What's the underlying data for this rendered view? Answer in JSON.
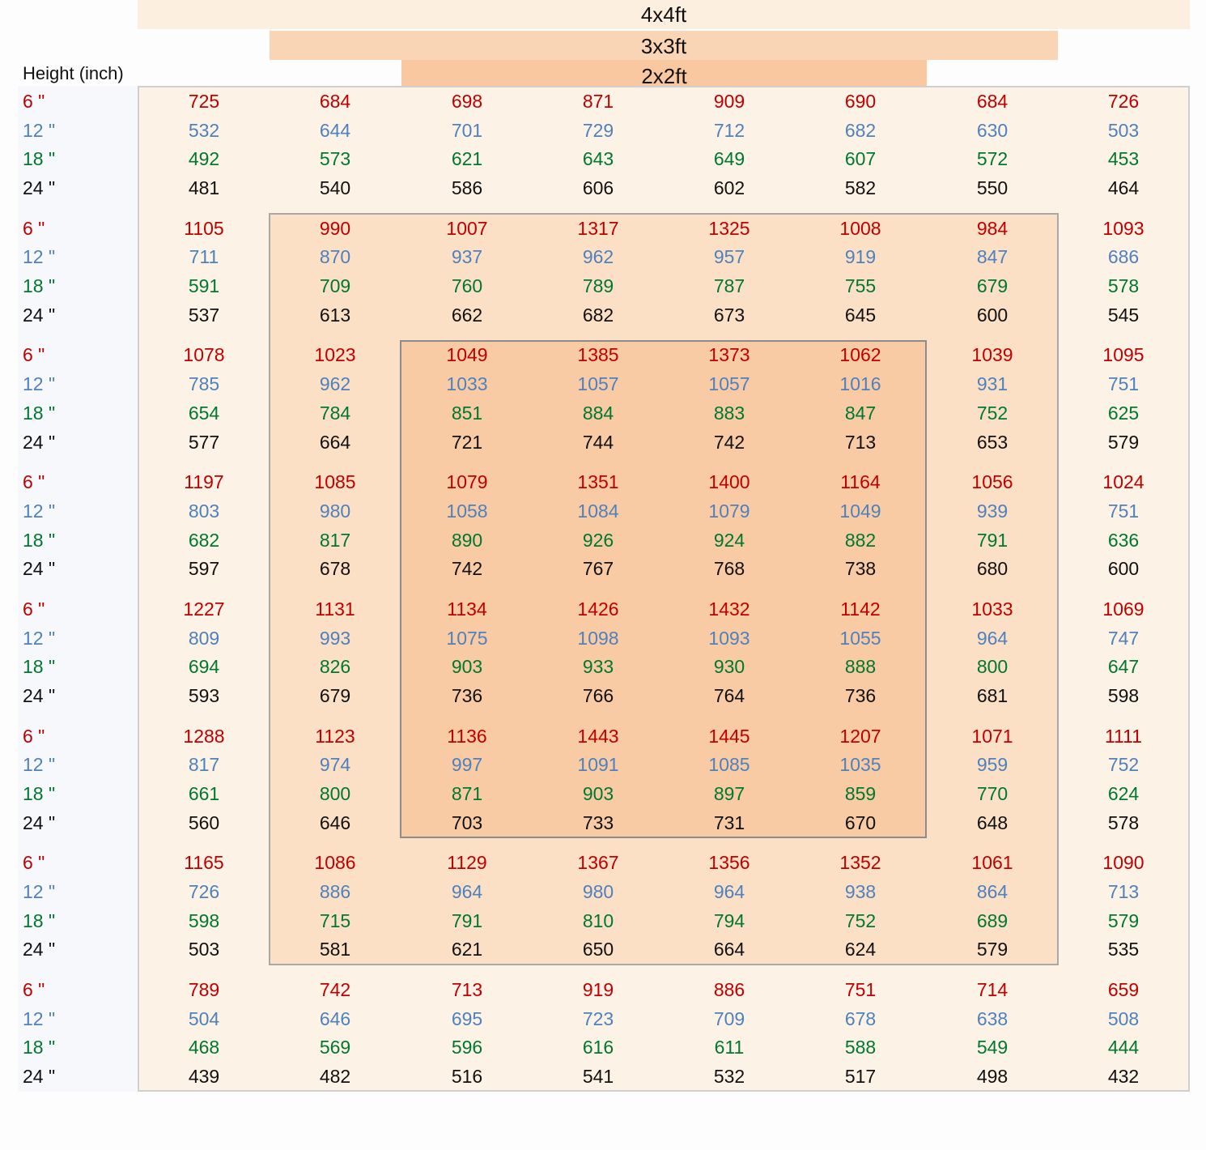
{
  "coverage_bands": [
    "4x4ft",
    "3x3ft",
    "2x2ft"
  ],
  "height_axis_label": "Height (inch)",
  "colors": {
    "h6": "#c00000",
    "h12": "#4f81bd",
    "h18": "#00782f",
    "h24": "#111111",
    "band_4x4": "#fdefdf",
    "band_3x3": "#fad5b5",
    "band_2x2": "#f9c8a0"
  },
  "chart_data": {
    "type": "table",
    "heights": [
      "6 \"",
      "12 \"",
      "18 \"",
      "24 \""
    ],
    "grid": [
      {
        "6": [
          725,
          684,
          698,
          871,
          909,
          690,
          684,
          726
        ],
        "12": [
          532,
          644,
          701,
          729,
          712,
          682,
          630,
          503
        ],
        "18": [
          492,
          573,
          621,
          643,
          649,
          607,
          572,
          453
        ],
        "24": [
          481,
          540,
          586,
          606,
          602,
          582,
          550,
          464
        ]
      },
      {
        "6": [
          1105,
          990,
          1007,
          1317,
          1325,
          1008,
          984,
          1093
        ],
        "12": [
          711,
          870,
          937,
          962,
          957,
          919,
          847,
          686
        ],
        "18": [
          591,
          709,
          760,
          789,
          787,
          755,
          679,
          578
        ],
        "24": [
          537,
          613,
          662,
          682,
          673,
          645,
          600,
          545
        ]
      },
      {
        "6": [
          1078,
          1023,
          1049,
          1385,
          1373,
          1062,
          1039,
          1095
        ],
        "12": [
          785,
          962,
          1033,
          1057,
          1057,
          1016,
          931,
          751
        ],
        "18": [
          654,
          784,
          851,
          884,
          883,
          847,
          752,
          625
        ],
        "24": [
          577,
          664,
          721,
          744,
          742,
          713,
          653,
          579
        ]
      },
      {
        "6": [
          1197,
          1085,
          1079,
          1351,
          1400,
          1164,
          1056,
          1024
        ],
        "12": [
          803,
          980,
          1058,
          1084,
          1079,
          1049,
          939,
          751
        ],
        "18": [
          682,
          817,
          890,
          926,
          924,
          882,
          791,
          636
        ],
        "24": [
          597,
          678,
          742,
          767,
          768,
          738,
          680,
          600
        ]
      },
      {
        "6": [
          1227,
          1131,
          1134,
          1426,
          1432,
          1142,
          1033,
          1069
        ],
        "12": [
          809,
          993,
          1075,
          1098,
          1093,
          1055,
          964,
          747
        ],
        "18": [
          694,
          826,
          903,
          933,
          930,
          888,
          800,
          647
        ],
        "24": [
          593,
          679,
          736,
          766,
          764,
          736,
          681,
          598
        ]
      },
      {
        "6": [
          1288,
          1123,
          1136,
          1443,
          1445,
          1207,
          1071,
          1111
        ],
        "12": [
          817,
          974,
          997,
          1091,
          1085,
          1035,
          959,
          752
        ],
        "18": [
          661,
          800,
          871,
          903,
          897,
          859,
          770,
          624
        ],
        "24": [
          560,
          646,
          703,
          733,
          731,
          670,
          648,
          578
        ]
      },
      {
        "6": [
          1165,
          1086,
          1129,
          1367,
          1356,
          1352,
          1061,
          1090
        ],
        "12": [
          726,
          886,
          964,
          980,
          964,
          938,
          864,
          713
        ],
        "18": [
          598,
          715,
          791,
          810,
          794,
          752,
          689,
          579
        ],
        "24": [
          503,
          581,
          621,
          650,
          664,
          624,
          579,
          535
        ]
      },
      {
        "6": [
          789,
          742,
          713,
          919,
          886,
          751,
          714,
          659
        ],
        "12": [
          504,
          646,
          695,
          723,
          709,
          678,
          638,
          508
        ],
        "18": [
          468,
          569,
          596,
          616,
          611,
          588,
          549,
          444
        ],
        "24": [
          439,
          482,
          516,
          541,
          532,
          517,
          498,
          432
        ]
      }
    ]
  }
}
